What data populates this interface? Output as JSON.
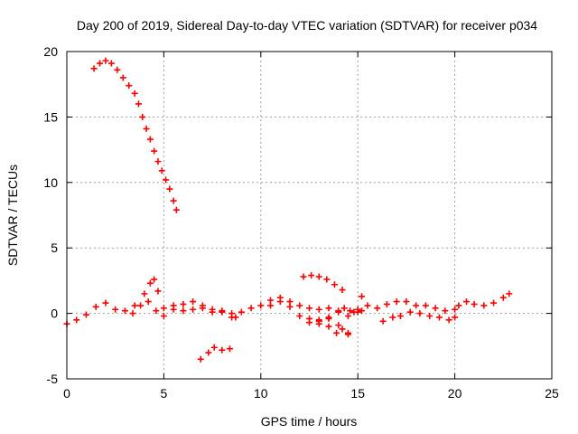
{
  "chart_data": {
    "type": "scatter",
    "title": "Day 200 of 2019, Sidereal Day-to-day VTEC variation (SDTVAR) for receiver p034",
    "xlabel": "GPS time / hours",
    "ylabel": "SDTVAR / TECUs",
    "xlim": [
      0,
      25
    ],
    "ylim": [
      -5,
      20
    ],
    "x_ticks": [
      "0",
      "5",
      "10",
      "15",
      "20",
      "25"
    ],
    "y_ticks": [
      "-5",
      "0",
      "5",
      "10",
      "15",
      "20"
    ],
    "grid": true,
    "marker": "+",
    "marker_color": "#ff0000",
    "series": [
      {
        "name": "track-1",
        "x": [
          1.4,
          1.7,
          2.0,
          2.3,
          2.6,
          2.9,
          3.2,
          3.5,
          3.7,
          3.9,
          4.1,
          4.3,
          4.5,
          4.7,
          4.9,
          5.1,
          5.3,
          5.5,
          5.65
        ],
        "y": [
          18.7,
          19.1,
          19.3,
          19.1,
          18.6,
          18.0,
          17.4,
          16.8,
          16.0,
          15.0,
          14.1,
          13.3,
          12.4,
          11.6,
          10.9,
          10.2,
          9.5,
          8.6,
          7.9
        ]
      },
      {
        "name": "track-2",
        "x": [
          0,
          0.5,
          1.0,
          1.5,
          2.0,
          2.5,
          3.0,
          3.5,
          4.0,
          4.3,
          4.5,
          4.7,
          5.0,
          5.5,
          6.0,
          6.5,
          7.0,
          7.5,
          8.0,
          8.5
        ],
        "y": [
          -0.8,
          -0.5,
          -0.1,
          0.5,
          0.8,
          0.3,
          0.2,
          0.6,
          1.5,
          2.3,
          2.6,
          1.7,
          0.4,
          0.6,
          0.2,
          0.3,
          0.6,
          0.3,
          0.1,
          -0.3
        ]
      },
      {
        "name": "track-3",
        "x": [
          3.4,
          3.8,
          4.2,
          4.6,
          5.0,
          5.5,
          6.0,
          6.5,
          7.0,
          7.5,
          8.0,
          8.5
        ],
        "y": [
          0.0,
          0.6,
          0.9,
          0.2,
          -0.2,
          0.3,
          0.7,
          0.9,
          0.4,
          0.1,
          0.2,
          0.0
        ]
      },
      {
        "name": "track-4",
        "x": [
          8.7,
          9.0,
          9.5,
          10.0,
          10.5,
          11.0,
          11.5,
          12.0,
          12.5,
          13.0,
          13.5,
          14.0,
          14.5,
          14.8,
          15.0,
          15.2
        ],
        "y": [
          -0.3,
          0.1,
          0.4,
          0.6,
          1.0,
          1.2,
          0.9,
          0.6,
          0.4,
          0.3,
          0.4,
          0.1,
          -0.2,
          0.1,
          0.3,
          0.2
        ]
      },
      {
        "name": "track-5",
        "x": [
          10.5,
          11.0,
          11.5,
          12.0,
          12.5,
          13.0,
          13.5,
          14.0,
          14.3,
          14.6
        ],
        "y": [
          0.6,
          0.9,
          0.5,
          -0.2,
          -0.7,
          -0.8,
          -0.4,
          0.2,
          0.4,
          0.2
        ]
      },
      {
        "name": "track-6",
        "x": [
          12.5,
          13.0,
          13.5,
          14.0,
          14.5,
          15.0,
          15.2
        ],
        "y": [
          -0.4,
          -0.5,
          -0.3,
          -0.9,
          -1.5,
          0.1,
          1.3
        ]
      },
      {
        "name": "track-7",
        "x": [
          13.0,
          13.5,
          13.9,
          14.2,
          14.5
        ],
        "y": [
          -0.6,
          -1.0,
          -1.5,
          -1.2,
          -1.6
        ]
      },
      {
        "name": "track-8",
        "x": [
          12.2,
          12.6,
          13.0,
          13.4,
          13.8,
          14.2
        ],
        "y": [
          2.8,
          2.9,
          2.8,
          2.6,
          2.2,
          1.8
        ]
      },
      {
        "name": "track-9",
        "x": [
          15.5,
          16.0,
          16.5,
          17.0,
          17.5,
          18.0,
          18.5,
          19.0,
          19.5,
          20.0
        ],
        "y": [
          0.6,
          0.4,
          0.7,
          0.9,
          0.9,
          0.6,
          0.6,
          0.4,
          0.2,
          0.3
        ]
      },
      {
        "name": "track-10",
        "x": [
          16.3,
          16.8,
          17.2,
          17.7,
          18.2,
          18.7,
          19.2,
          19.7,
          20.0
        ],
        "y": [
          -0.6,
          -0.3,
          -0.2,
          0.1,
          0.0,
          -0.2,
          -0.3,
          -0.5,
          -0.3
        ]
      },
      {
        "name": "track-11",
        "x": [
          20.2,
          20.6,
          21.0,
          21.5,
          22.0,
          22.5,
          22.8
        ],
        "y": [
          0.6,
          0.9,
          0.7,
          0.6,
          0.8,
          1.2,
          1.5
        ]
      },
      {
        "name": "track-12",
        "x": [
          6.9,
          7.3,
          7.6,
          8.0,
          8.4
        ],
        "y": [
          -3.5,
          -3.0,
          -2.6,
          -2.8,
          -2.7
        ]
      }
    ]
  }
}
